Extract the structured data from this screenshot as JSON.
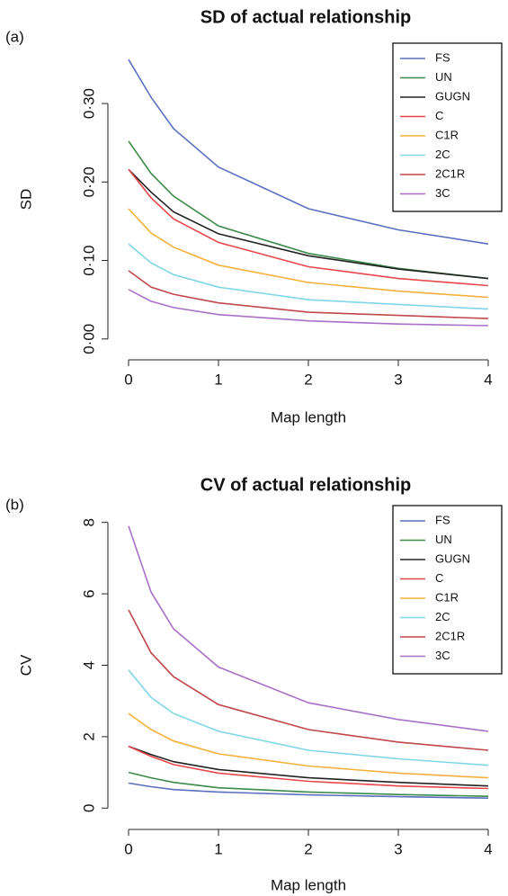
{
  "chart_data": [
    {
      "type": "line",
      "label": "(a)",
      "title": "SD of actual relationship",
      "x_label": "Map length",
      "y_label": "SD",
      "x": [
        0,
        0.25,
        0.5,
        1,
        2,
        3,
        4
      ],
      "xlim": [
        -0.16,
        4.16
      ],
      "xticks": [
        0,
        1,
        2,
        3,
        4
      ],
      "ylim": [
        -0.014,
        0.37
      ],
      "yticks": [
        {
          "value": 0,
          "label": "0·00"
        },
        {
          "value": 0.1,
          "label": "0·10"
        },
        {
          "value": 0.2,
          "label": "0·20"
        },
        {
          "value": 0.3,
          "label": "0·30"
        }
      ],
      "legend": "top-right",
      "series": [
        {
          "name": "FS",
          "color": "#5b6fc0",
          "values": [
            0.356,
            0.308,
            0.268,
            0.219,
            0.166,
            0.139,
            0.121
          ]
        },
        {
          "name": "UN",
          "color": "#3b8a4a",
          "values": [
            0.252,
            0.211,
            0.182,
            0.144,
            0.109,
            0.09,
            0.077
          ]
        },
        {
          "name": "GUGN",
          "color": "#222222",
          "values": [
            0.216,
            0.187,
            0.162,
            0.134,
            0.106,
            0.089,
            0.077
          ]
        },
        {
          "name": "C",
          "color": "#e8474a",
          "values": [
            0.216,
            0.18,
            0.153,
            0.123,
            0.092,
            0.077,
            0.068
          ]
        },
        {
          "name": "C1R",
          "color": "#f5b03a",
          "values": [
            0.166,
            0.135,
            0.117,
            0.094,
            0.072,
            0.061,
            0.053
          ]
        },
        {
          "name": "2C",
          "color": "#7fd6e6",
          "values": [
            0.121,
            0.097,
            0.082,
            0.066,
            0.05,
            0.044,
            0.038
          ]
        },
        {
          "name": "2C1R",
          "color": "#c0474c",
          "values": [
            0.087,
            0.066,
            0.057,
            0.046,
            0.034,
            0.03,
            0.026
          ]
        },
        {
          "name": "3C",
          "color": "#a970c8",
          "values": [
            0.063,
            0.048,
            0.04,
            0.031,
            0.023,
            0.019,
            0.017
          ]
        }
      ]
    },
    {
      "type": "line",
      "label": "(b)",
      "title": "CV of actual relationship",
      "x_label": "Map length",
      "y_label": "CV",
      "x": [
        0,
        0.25,
        0.5,
        1,
        2,
        3,
        4
      ],
      "xlim": [
        -0.16,
        4.16
      ],
      "xticks": [
        0,
        1,
        2,
        3,
        4
      ],
      "ylim": [
        -0.32,
        8.32
      ],
      "yticks": [
        0,
        2,
        4,
        6,
        8
      ],
      "legend": "top-right",
      "series": [
        {
          "name": "FS",
          "color": "#5b6fc0",
          "values": [
            0.7,
            0.6,
            0.52,
            0.45,
            0.37,
            0.32,
            0.28
          ]
        },
        {
          "name": "UN",
          "color": "#3b8a4a",
          "values": [
            1.0,
            0.85,
            0.72,
            0.57,
            0.45,
            0.38,
            0.33
          ]
        },
        {
          "name": "GUGN",
          "color": "#222222",
          "values": [
            1.73,
            1.5,
            1.3,
            1.08,
            0.85,
            0.72,
            0.62
          ]
        },
        {
          "name": "C",
          "color": "#e8474a",
          "values": [
            1.73,
            1.45,
            1.22,
            0.98,
            0.75,
            0.62,
            0.55
          ]
        },
        {
          "name": "C1R",
          "color": "#f5b03a",
          "values": [
            2.65,
            2.2,
            1.88,
            1.52,
            1.18,
            0.98,
            0.85
          ]
        },
        {
          "name": "2C",
          "color": "#7fd6e6",
          "values": [
            3.87,
            3.1,
            2.65,
            2.15,
            1.62,
            1.38,
            1.2
          ]
        },
        {
          "name": "2C1R",
          "color": "#c0474c",
          "values": [
            5.55,
            4.35,
            3.68,
            2.9,
            2.2,
            1.85,
            1.62
          ]
        },
        {
          "name": "3C",
          "color": "#a970c8",
          "values": [
            7.9,
            6.05,
            5.02,
            3.95,
            2.95,
            2.48,
            2.15
          ]
        }
      ]
    }
  ]
}
